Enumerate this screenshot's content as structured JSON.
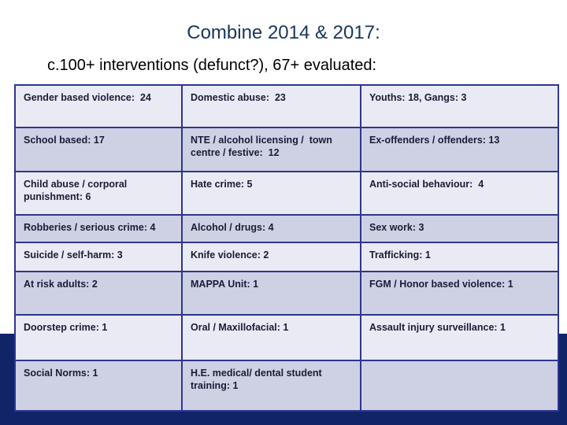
{
  "slide": {
    "title": "Combine 2014 & 2017:",
    "subtitle": "c.100+ interventions (defunct?), 67+ evaluated:"
  },
  "table": {
    "rows": [
      [
        "Gender based violence:  24",
        "Domestic abuse:  23",
        "Youths: 18, Gangs: 3"
      ],
      [
        "School based: 17",
        "NTE / alcohol licensing /  town centre / festive:  12",
        "Ex-offenders / offenders: 13"
      ],
      [
        "Child abuse / corporal punishment: 6",
        "Hate crime: 5",
        "Anti-social behaviour:  4"
      ],
      [
        "Robberies / serious crime: 4",
        "Alcohol / drugs: 4",
        "Sex work: 3"
      ],
      [
        "Suicide / self-harm: 3",
        "Knife violence: 2",
        "Trafficking: 1"
      ],
      [
        "At risk adults: 2",
        "MAPPA Unit: 1",
        "FGM / Honor based violence: 1"
      ],
      [
        "Doorstep crime: 1",
        "Oral / Maxillofacial: 1",
        "Assault injury surveillance: 1"
      ],
      [
        "Social Norms: 1",
        "H.E. medical/ dental student training: 1",
        ""
      ]
    ]
  },
  "colors": {
    "title_text": "#17365d",
    "subtitle_text": "#000000",
    "table_border": "#2e3590",
    "row_light": "#e9eaf3",
    "row_dark": "#ced1e4",
    "cell_text": "#1b1b36",
    "navy_band": "#122468",
    "background": "#ffffff"
  }
}
